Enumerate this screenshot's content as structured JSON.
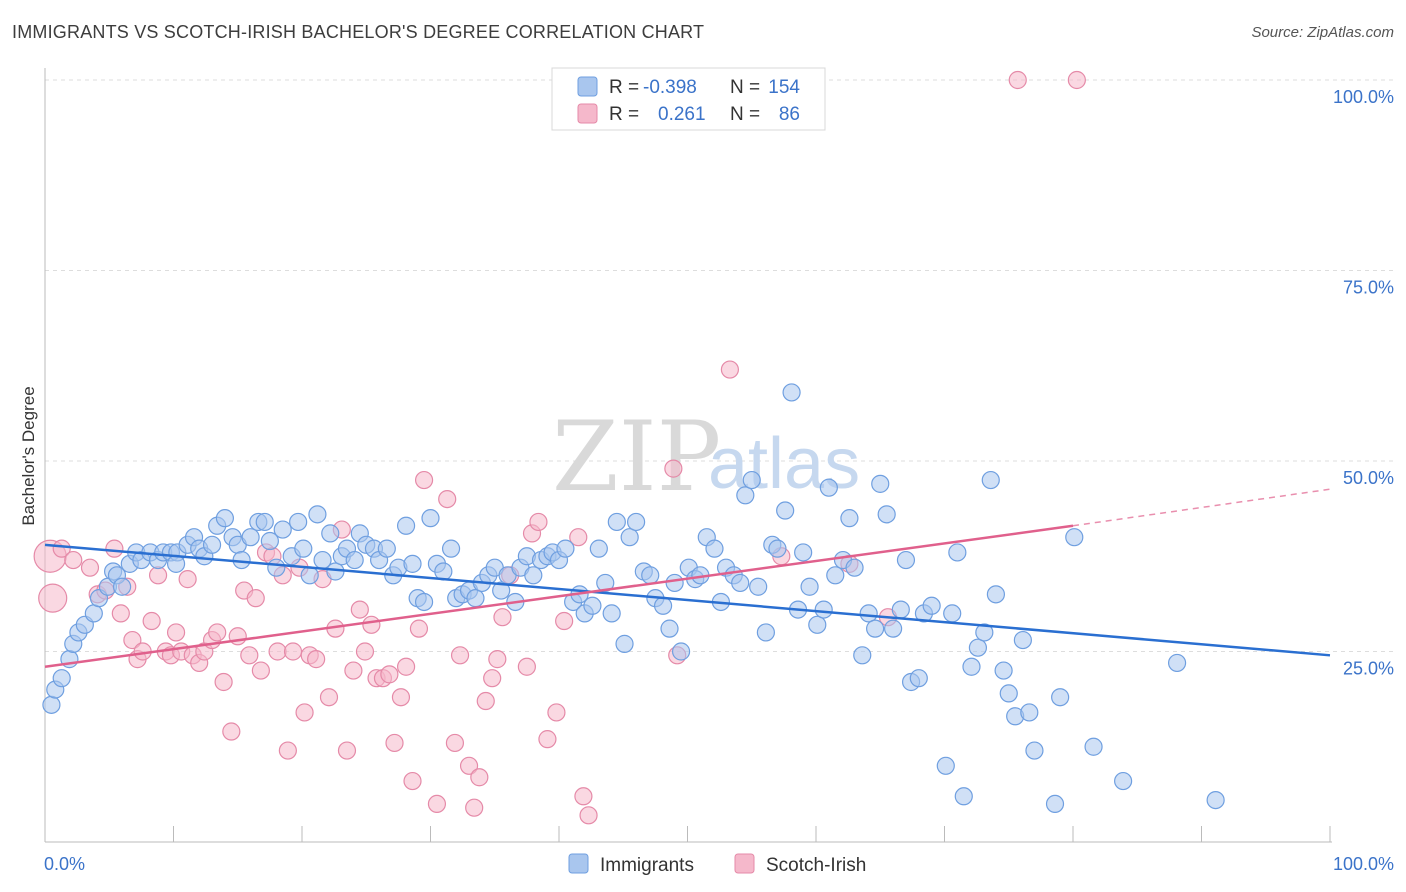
{
  "header": {
    "title": "IMMIGRANTS VS SCOTCH-IRISH BACHELOR'S DEGREE CORRELATION CHART",
    "source": "Source: ZipAtlas.com"
  },
  "watermark": {
    "zip": "ZIP",
    "atlas": "atlas"
  },
  "colors": {
    "immigrants_fill": "#a9c6ee",
    "immigrants_stroke": "#6f9fe0",
    "immigrants_line": "#2a6fd1",
    "scotch_fill": "#f5b8cb",
    "scotch_stroke": "#e58aa8",
    "scotch_line": "#e0608c",
    "grid": "#dddddd",
    "axis_label": "#3b73c9"
  },
  "legend": {
    "rows": [
      {
        "r_label": "R =",
        "r_value": "-0.398",
        "n_label": "N =",
        "n_value": "154"
      },
      {
        "r_label": "R =",
        "r_value": "0.261",
        "n_label": "N =",
        "n_value": "86"
      }
    ]
  },
  "bottom_legend": {
    "immigrants": "Immigrants",
    "scotch_irish": "Scotch-Irish"
  },
  "chart_data": {
    "type": "scatter",
    "ylabel": "Bachelor's Degree",
    "xlim": [
      0,
      100
    ],
    "ylim": [
      0,
      100
    ],
    "x_ticks": [
      "0.0%",
      "100.0%"
    ],
    "y_ticks": [
      {
        "value": 25,
        "label": "25.0%"
      },
      {
        "value": 50,
        "label": "50.0%"
      },
      {
        "value": 75,
        "label": "75.0%"
      },
      {
        "value": 100,
        "label": "100.0%"
      }
    ],
    "grid": "horizontal dashed",
    "series": [
      {
        "name": "Immigrants",
        "r": -0.398,
        "n": 154,
        "trend": {
          "x0": 0,
          "y0": 39.0,
          "x1": 100,
          "y1": 24.5
        },
        "points": [
          [
            0.5,
            18
          ],
          [
            0.8,
            20
          ],
          [
            1.3,
            21.5
          ],
          [
            1.9,
            24
          ],
          [
            2.2,
            26
          ],
          [
            2.6,
            27.5
          ],
          [
            3.1,
            28.5
          ],
          [
            3.8,
            30
          ],
          [
            4.2,
            32
          ],
          [
            4.9,
            33.5
          ],
          [
            5.3,
            35.5
          ],
          [
            5.6,
            35
          ],
          [
            6.0,
            33.5
          ],
          [
            6.6,
            36.5
          ],
          [
            7.1,
            38
          ],
          [
            7.5,
            37
          ],
          [
            8.2,
            38
          ],
          [
            8.8,
            37
          ],
          [
            9.2,
            38
          ],
          [
            9.8,
            38
          ],
          [
            10.3,
            38
          ],
          [
            10.2,
            36.5
          ],
          [
            11.1,
            39
          ],
          [
            11.6,
            40
          ],
          [
            12.0,
            38.5
          ],
          [
            12.4,
            37.5
          ],
          [
            13.0,
            39
          ],
          [
            13.4,
            41.5
          ],
          [
            14.0,
            42.5
          ],
          [
            14.6,
            40
          ],
          [
            15.0,
            39
          ],
          [
            15.3,
            37
          ],
          [
            16.0,
            40
          ],
          [
            16.6,
            42
          ],
          [
            17.1,
            42
          ],
          [
            17.5,
            39.5
          ],
          [
            18.0,
            36
          ],
          [
            18.5,
            41
          ],
          [
            19.2,
            37.5
          ],
          [
            19.7,
            42
          ],
          [
            20.1,
            38.5
          ],
          [
            20.6,
            35
          ],
          [
            21.2,
            43
          ],
          [
            21.6,
            37
          ],
          [
            22.2,
            40.5
          ],
          [
            22.6,
            35.5
          ],
          [
            23.1,
            37.5
          ],
          [
            23.5,
            38.5
          ],
          [
            24.1,
            37
          ],
          [
            24.5,
            40.5
          ],
          [
            25.0,
            39
          ],
          [
            25.6,
            38.5
          ],
          [
            26.0,
            37
          ],
          [
            26.6,
            38.5
          ],
          [
            27.1,
            35
          ],
          [
            27.5,
            36
          ],
          [
            28.1,
            41.5
          ],
          [
            28.6,
            36.5
          ],
          [
            29.0,
            32
          ],
          [
            29.5,
            31.5
          ],
          [
            30.0,
            42.5
          ],
          [
            30.5,
            36.5
          ],
          [
            31.0,
            35.5
          ],
          [
            31.6,
            38.5
          ],
          [
            32.0,
            32
          ],
          [
            32.5,
            32.5
          ],
          [
            33.0,
            33
          ],
          [
            33.5,
            32
          ],
          [
            34.0,
            34
          ],
          [
            34.5,
            35
          ],
          [
            35.0,
            36
          ],
          [
            35.5,
            33
          ],
          [
            36.0,
            35
          ],
          [
            36.6,
            31.5
          ],
          [
            37.0,
            36
          ],
          [
            37.5,
            37.5
          ],
          [
            38.0,
            35
          ],
          [
            38.6,
            37
          ],
          [
            39.1,
            37.5
          ],
          [
            39.5,
            38
          ],
          [
            40.0,
            37
          ],
          [
            40.5,
            38.5
          ],
          [
            41.1,
            31.5
          ],
          [
            41.6,
            32.5
          ],
          [
            42.0,
            30
          ],
          [
            42.6,
            31
          ],
          [
            43.1,
            38.5
          ],
          [
            43.6,
            34
          ],
          [
            44.1,
            30
          ],
          [
            44.5,
            42
          ],
          [
            45.1,
            26
          ],
          [
            45.5,
            40
          ],
          [
            46.0,
            42
          ],
          [
            46.6,
            35.5
          ],
          [
            47.1,
            35
          ],
          [
            47.5,
            32
          ],
          [
            48.1,
            31
          ],
          [
            48.6,
            28
          ],
          [
            49.0,
            34
          ],
          [
            49.5,
            25
          ],
          [
            50.1,
            36
          ],
          [
            50.6,
            34.5
          ],
          [
            51.0,
            35
          ],
          [
            51.5,
            40
          ],
          [
            52.1,
            38.5
          ],
          [
            52.6,
            31.5
          ],
          [
            53.0,
            36
          ],
          [
            53.6,
            35
          ],
          [
            54.1,
            34
          ],
          [
            54.5,
            45.5
          ],
          [
            55.0,
            47.5
          ],
          [
            55.5,
            33.5
          ],
          [
            56.1,
            27.5
          ],
          [
            56.6,
            39
          ],
          [
            57.0,
            38.5
          ],
          [
            57.6,
            43.5
          ],
          [
            58.1,
            59
          ],
          [
            58.6,
            30.5
          ],
          [
            59.0,
            38
          ],
          [
            59.5,
            33.5
          ],
          [
            60.1,
            28.5
          ],
          [
            60.6,
            30.5
          ],
          [
            61.0,
            46.5
          ],
          [
            61.5,
            35
          ],
          [
            62.1,
            37
          ],
          [
            62.6,
            42.5
          ],
          [
            63.0,
            36
          ],
          [
            63.6,
            24.5
          ],
          [
            64.1,
            30
          ],
          [
            64.6,
            28
          ],
          [
            65.0,
            47
          ],
          [
            65.5,
            43
          ],
          [
            66.0,
            28
          ],
          [
            66.6,
            30.5
          ],
          [
            67.0,
            37
          ],
          [
            67.4,
            21
          ],
          [
            68.0,
            21.5
          ],
          [
            68.4,
            30
          ],
          [
            69.0,
            31
          ],
          [
            70.1,
            10
          ],
          [
            70.6,
            30
          ],
          [
            71.0,
            38
          ],
          [
            71.5,
            6
          ],
          [
            72.1,
            23
          ],
          [
            72.6,
            25.5
          ],
          [
            73.1,
            27.5
          ],
          [
            73.6,
            47.5
          ],
          [
            74.0,
            32.5
          ],
          [
            74.6,
            22.5
          ],
          [
            75.0,
            19.5
          ],
          [
            75.5,
            16.5
          ],
          [
            76.1,
            26.5
          ],
          [
            76.6,
            17
          ],
          [
            77.0,
            12
          ],
          [
            78.6,
            5
          ],
          [
            79.0,
            19
          ],
          [
            80.1,
            40
          ],
          [
            81.6,
            12.5
          ],
          [
            83.9,
            8
          ],
          [
            88.1,
            23.5
          ],
          [
            91.1,
            5.5
          ]
        ]
      },
      {
        "name": "Scotch-Irish",
        "r": 0.261,
        "n": 86,
        "trend": {
          "x0": 0,
          "y0": 23.0,
          "x1": 80,
          "y1": 41.5,
          "dash_x1": 100,
          "dash_y1": 46.3
        },
        "points": [
          [
            0.4,
            37.5
          ],
          [
            0.6,
            32
          ],
          [
            1.3,
            38.5
          ],
          [
            2.2,
            37
          ],
          [
            3.5,
            36
          ],
          [
            4.1,
            32.5
          ],
          [
            4.7,
            33
          ],
          [
            5.4,
            38.5
          ],
          [
            5.9,
            30
          ],
          [
            6.4,
            33.5
          ],
          [
            6.8,
            26.5
          ],
          [
            7.2,
            24
          ],
          [
            7.6,
            25
          ],
          [
            8.3,
            29
          ],
          [
            8.8,
            35
          ],
          [
            9.4,
            25
          ],
          [
            9.8,
            24.5
          ],
          [
            10.2,
            27.5
          ],
          [
            10.6,
            25
          ],
          [
            11.1,
            34.5
          ],
          [
            11.5,
            24.5
          ],
          [
            12.0,
            23.5
          ],
          [
            12.4,
            25
          ],
          [
            13.0,
            26.5
          ],
          [
            13.4,
            27.5
          ],
          [
            13.9,
            21
          ],
          [
            14.5,
            14.5
          ],
          [
            15.0,
            27
          ],
          [
            15.5,
            33
          ],
          [
            15.9,
            24.5
          ],
          [
            16.4,
            32
          ],
          [
            16.8,
            22.5
          ],
          [
            17.2,
            38
          ],
          [
            17.7,
            37.5
          ],
          [
            18.1,
            25
          ],
          [
            18.5,
            35
          ],
          [
            18.9,
            12
          ],
          [
            19.3,
            25
          ],
          [
            19.8,
            36
          ],
          [
            20.2,
            17
          ],
          [
            20.6,
            24.5
          ],
          [
            21.1,
            24
          ],
          [
            21.6,
            34.5
          ],
          [
            22.1,
            19
          ],
          [
            22.6,
            28
          ],
          [
            23.1,
            41
          ],
          [
            23.5,
            12
          ],
          [
            24.0,
            22.5
          ],
          [
            24.5,
            30.5
          ],
          [
            24.9,
            25
          ],
          [
            25.4,
            28.5
          ],
          [
            25.8,
            21.5
          ],
          [
            26.3,
            21.5
          ],
          [
            26.8,
            22
          ],
          [
            27.2,
            13
          ],
          [
            27.7,
            19
          ],
          [
            28.1,
            23
          ],
          [
            28.6,
            8
          ],
          [
            29.1,
            28
          ],
          [
            29.5,
            47.5
          ],
          [
            30.5,
            5
          ],
          [
            31.3,
            45
          ],
          [
            31.9,
            13
          ],
          [
            32.3,
            24.5
          ],
          [
            33.0,
            10
          ],
          [
            33.4,
            4.5
          ],
          [
            33.8,
            8.5
          ],
          [
            34.3,
            18.5
          ],
          [
            34.8,
            21.5
          ],
          [
            35.2,
            24
          ],
          [
            35.6,
            29.5
          ],
          [
            36.2,
            35
          ],
          [
            37.5,
            23
          ],
          [
            37.9,
            40.5
          ],
          [
            38.4,
            42
          ],
          [
            39.1,
            13.5
          ],
          [
            39.8,
            17
          ],
          [
            40.4,
            29
          ],
          [
            41.5,
            40
          ],
          [
            41.9,
            6
          ],
          [
            42.3,
            3.5
          ],
          [
            48.9,
            49
          ],
          [
            49.2,
            24.5
          ],
          [
            53.3,
            62
          ],
          [
            57.3,
            37.5
          ],
          [
            62.6,
            36.5
          ],
          [
            65.6,
            29.5
          ],
          [
            75.7,
            100
          ],
          [
            80.3,
            100
          ]
        ]
      }
    ]
  }
}
